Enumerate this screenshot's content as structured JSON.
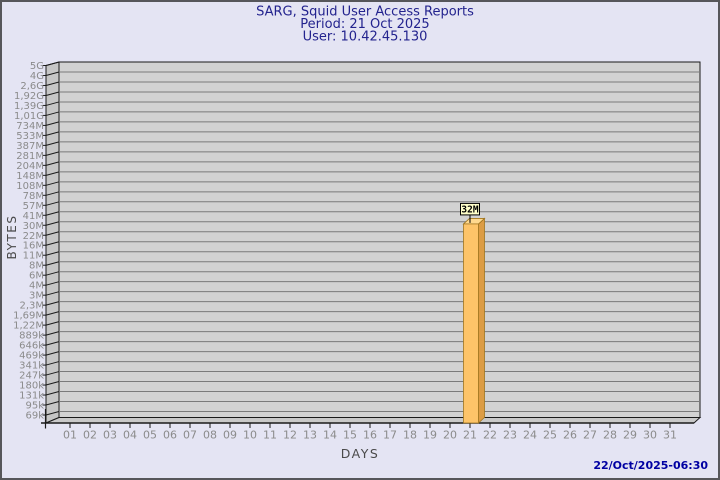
{
  "window": {
    "background": "#e4e4f3",
    "border_color": "#56565a"
  },
  "header": {
    "title": "SARG, Squid User Access Reports",
    "period": "Period: 21 Oct 2025",
    "user": "User: 10.42.45.130",
    "color": "#23238e"
  },
  "footer": {
    "timestamp": "22/Oct/2025-06:30",
    "color": "#0000a2"
  },
  "chart_data": {
    "type": "bar",
    "title": "SARG, Squid User Access Reports",
    "subtitle": [
      "Period: 21 Oct 2025",
      "User: 10.42.45.130"
    ],
    "xlabel": "DAYS",
    "ylabel": "BYTES",
    "y_scale": "log",
    "ylim": [
      56000,
      5000000000
    ],
    "grid": true,
    "y_tick_labels": [
      "5G",
      "4G",
      "2,6G",
      "1,92G",
      "1,39G",
      "1,01G",
      "734M",
      "533M",
      "387M",
      "281M",
      "204M",
      "148M",
      "108M",
      "78M",
      "57M",
      "41M",
      "30M",
      "22M",
      "16M",
      "11M",
      "8M",
      "6M",
      "4M",
      "3M",
      "2,3M",
      "1,69M",
      "1,22M",
      "889k",
      "646k",
      "469k",
      "341k",
      "247k",
      "180k",
      "131k",
      "95k",
      "69k"
    ],
    "x_tick_labels": [
      "01",
      "02",
      "03",
      "04",
      "05",
      "06",
      "07",
      "08",
      "09",
      "10",
      "11",
      "12",
      "13",
      "14",
      "15",
      "16",
      "17",
      "18",
      "19",
      "20",
      "21",
      "22",
      "23",
      "24",
      "25",
      "26",
      "27",
      "28",
      "29",
      "30",
      "31"
    ],
    "bars": [
      {
        "day": "21",
        "value": 32000000,
        "label": "32M"
      }
    ],
    "colors": {
      "plot_wall": "#d2d2d2",
      "side_wall": "#c6c6c6",
      "floor": "#c9c9c9",
      "gridline": "#7a7a7a",
      "axis_line": "#1a1a1a",
      "tick_label": "#8b8b8b",
      "axis_title": "#4a4a4a",
      "bar_front": "#fdc469",
      "bar_side": "#dc9c44",
      "bar_top": "#ffd98f",
      "bar_outline": "#a0751f",
      "value_box_bg": "#ffffc9",
      "value_box_border": "#000000",
      "value_text": "#000000"
    }
  }
}
